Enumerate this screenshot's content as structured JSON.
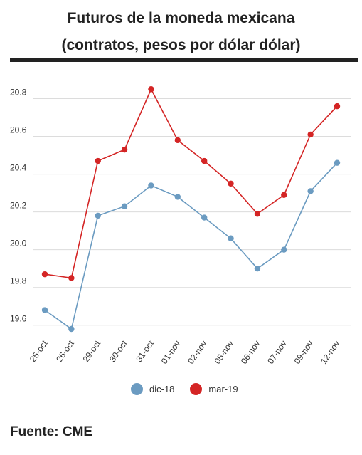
{
  "header": {
    "title_line1": "Futuros de la moneda mexicana",
    "title_line2": "(contratos, pesos por dólar dólar)"
  },
  "source": "Fuente: CME",
  "chart_data": {
    "type": "line",
    "categories": [
      "25-oct",
      "26-oct",
      "29-oct",
      "30-oct",
      "31-oct",
      "01-nov",
      "02-nov",
      "05-nov",
      "06-nov",
      "07-nov",
      "09-nov",
      "12-nov"
    ],
    "series": [
      {
        "name": "dic-18",
        "color": "#6b9bc1",
        "values": [
          19.68,
          19.58,
          20.18,
          20.23,
          20.34,
          20.28,
          20.17,
          20.06,
          19.9,
          20.0,
          20.31,
          20.46
        ]
      },
      {
        "name": "mar-19",
        "color": "#d42525",
        "values": [
          19.87,
          19.85,
          20.47,
          20.53,
          20.85,
          20.58,
          20.47,
          20.35,
          20.19,
          20.29,
          20.61,
          20.76
        ]
      }
    ],
    "y_ticks": [
      "19.6",
      "19.8",
      "20.0",
      "20.2",
      "20.4",
      "20.6",
      "20.8"
    ],
    "ylim": [
      19.55,
      20.9
    ],
    "grid": true,
    "legend_position": "bottom"
  }
}
